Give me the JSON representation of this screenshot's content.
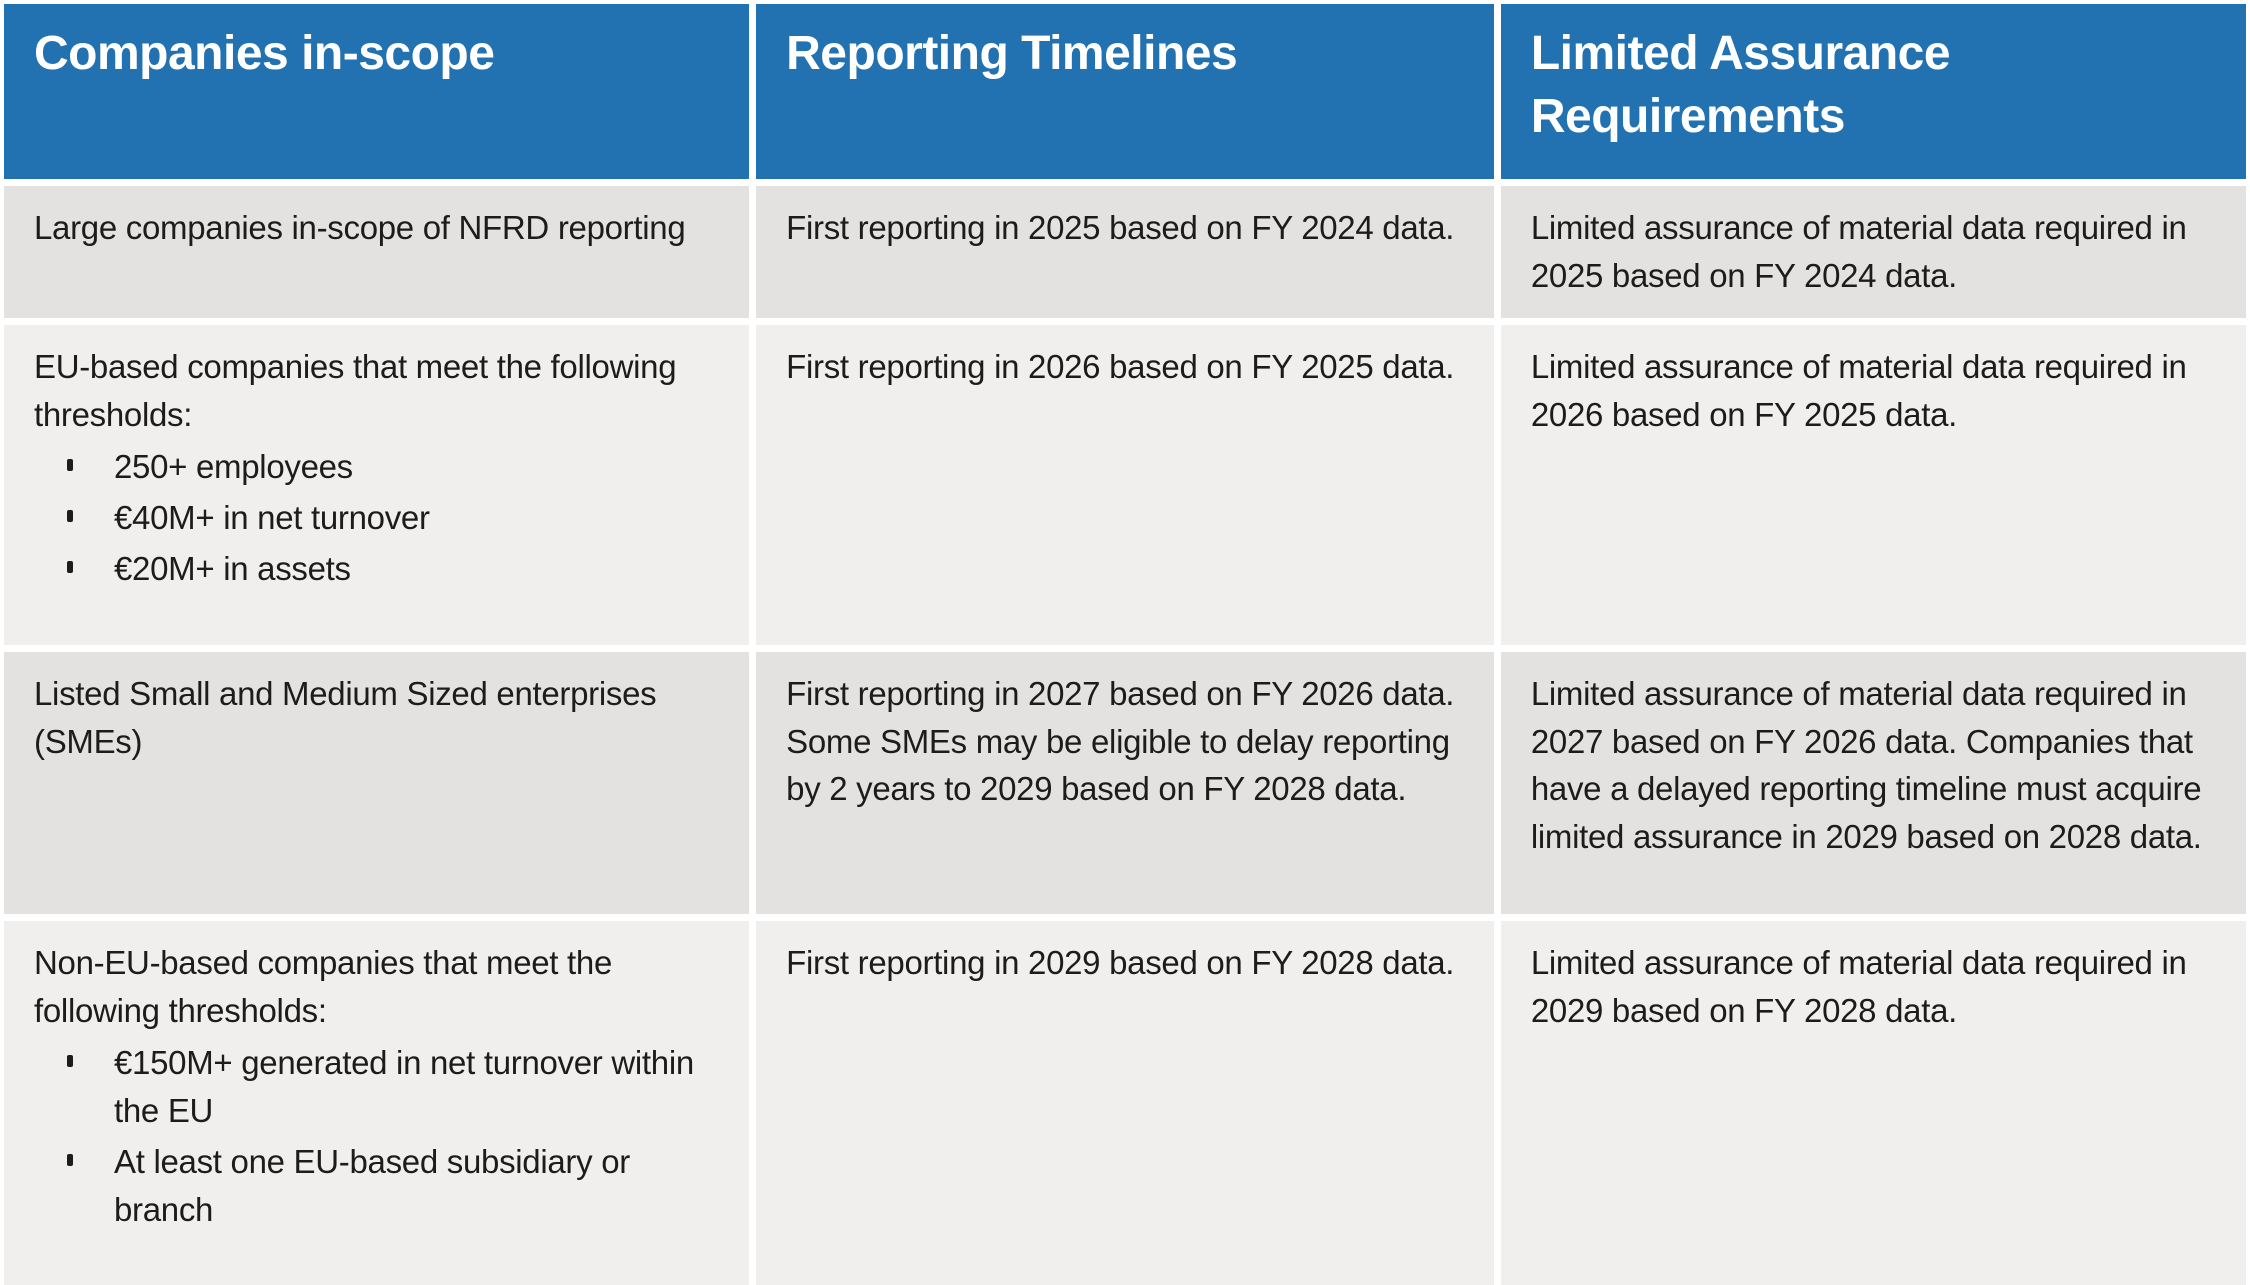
{
  "colors": {
    "header_background": "#2271b0",
    "header_text": "#ffffff",
    "row_dark": "#e3e2e0",
    "row_light": "#f0efed",
    "body_text": "#1c1c1c",
    "divider": "#ffffff"
  },
  "table": {
    "headers": [
      {
        "label": "Companies in-scope"
      },
      {
        "label": "Reporting Timelines"
      },
      {
        "label": "Limited Assurance Requirements"
      }
    ],
    "rows": [
      {
        "companies": {
          "text": "Large companies in-scope of NFRD reporting",
          "bullets": []
        },
        "timeline": "First reporting in 2025 based on FY 2024 data.",
        "assurance": "Limited assurance of material data required in 2025 based on FY 2024 data."
      },
      {
        "companies": {
          "text": "EU-based companies that meet the following thresholds:",
          "bullets": [
            "250+ employees",
            "€40M+ in net turnover",
            "€20M+ in assets"
          ]
        },
        "timeline": "First reporting in 2026 based on FY 2025 data.",
        "assurance": "Limited assurance of material data required in 2026 based on FY 2025 data."
      },
      {
        "companies": {
          "text": "Listed Small and Medium Sized enterprises (SMEs)",
          "bullets": []
        },
        "timeline": "First reporting in 2027 based on FY 2026 data. Some SMEs may be eligible to delay reporting by 2 years to 2029 based on FY 2028 data.",
        "assurance": "Limited assurance of material data required in 2027 based on FY 2026 data. Companies that have a delayed reporting timeline must acquire limited assurance in 2029 based on 2028 data."
      },
      {
        "companies": {
          "text": "Non-EU-based companies that meet the following thresholds:",
          "bullets": [
            "€150M+ generated in net turnover within the EU",
            "At least one EU-based subsidiary or branch"
          ]
        },
        "timeline": "First reporting in 2029 based on FY 2028 data.",
        "assurance": "Limited assurance of material data required in 2029 based on FY 2028 data."
      }
    ]
  }
}
